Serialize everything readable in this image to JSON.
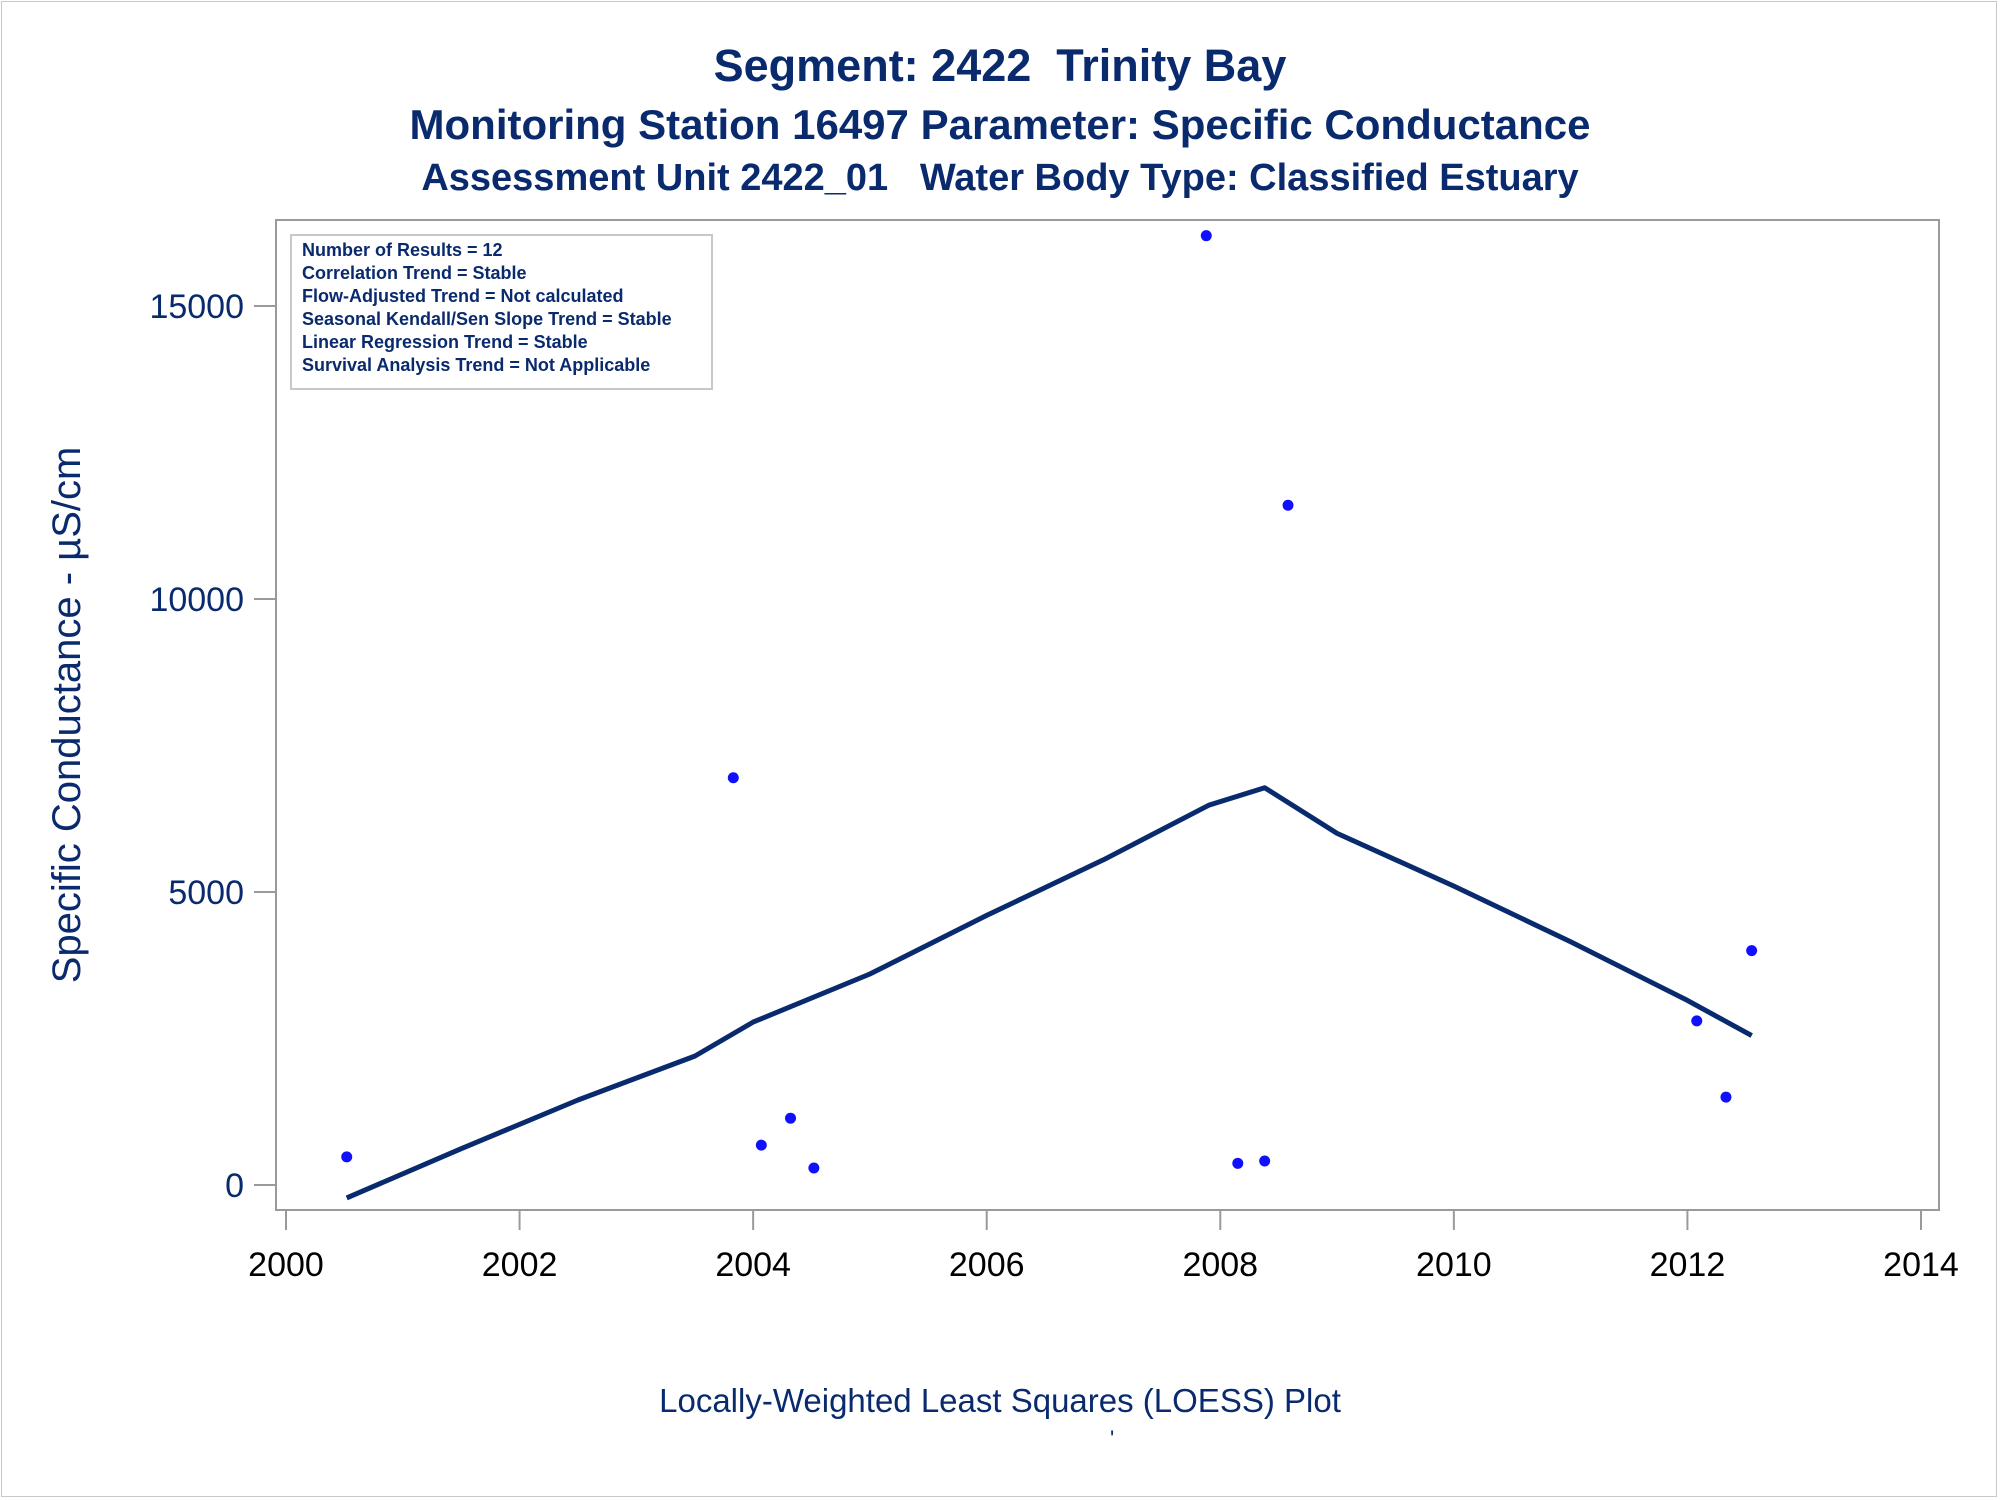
{
  "chart_data": {
    "type": "scatter",
    "title": "Segment: 2422  Trinity Bay",
    "subtitle": "Monitoring Station 16497 Parameter: Specific Conductance",
    "subtitle2": "Assessment Unit 2422_01   Water Body Type: Classified Estuary",
    "xlabel": "Locally-Weighted Least Squares (LOESS) Plot",
    "footnote": "'",
    "ylabel": "Specific Conductance -  µS/cm",
    "xlim": [
      2000,
      2014
    ],
    "ylim": [
      -400,
      16300
    ],
    "x_ticks": [
      2000,
      2002,
      2004,
      2006,
      2008,
      2010,
      2012,
      2014
    ],
    "y_ticks": [
      0,
      5000,
      10000,
      15000
    ],
    "x_tick_labels": [
      "2000",
      "2002",
      "2004",
      "2006",
      "2008",
      "2010",
      "2012",
      "2014"
    ],
    "y_tick_labels": [
      "0",
      "5000",
      "10000",
      "15000"
    ],
    "grid": false,
    "legend_placement": "top-left",
    "stats_box": [
      "Number of Results = 12",
      "Correlation Trend = Stable",
      "Flow-Adjusted Trend = Not calculated",
      "Seasonal Kendall/Sen Slope Trend = Stable",
      "Linear Regression Trend = Stable",
      "Survival Analysis Trend = Not Applicable"
    ],
    "series": [
      {
        "kind": "points",
        "color": "#1010ff",
        "points": [
          [
            2000.52,
            480
          ],
          [
            2003.83,
            6950
          ],
          [
            2004.07,
            680
          ],
          [
            2004.32,
            1140
          ],
          [
            2004.52,
            290
          ],
          [
            2007.88,
            16200
          ],
          [
            2008.15,
            370
          ],
          [
            2008.38,
            410
          ],
          [
            2008.58,
            11600
          ],
          [
            2012.08,
            2800
          ],
          [
            2012.33,
            1500
          ],
          [
            2012.55,
            4000
          ]
        ]
      },
      {
        "kind": "loess-line",
        "color": "#0a2a6e",
        "points": [
          [
            2000.52,
            -220
          ],
          [
            2001.5,
            620
          ],
          [
            2002.5,
            1450
          ],
          [
            2003.5,
            2200
          ],
          [
            2004.0,
            2780
          ],
          [
            2005.0,
            3600
          ],
          [
            2006.0,
            4600
          ],
          [
            2007.0,
            5550
          ],
          [
            2007.9,
            6480
          ],
          [
            2008.38,
            6780
          ],
          [
            2009.0,
            6000
          ],
          [
            2010.0,
            5100
          ],
          [
            2011.0,
            4150
          ],
          [
            2012.0,
            3150
          ],
          [
            2012.55,
            2550
          ]
        ]
      }
    ]
  }
}
